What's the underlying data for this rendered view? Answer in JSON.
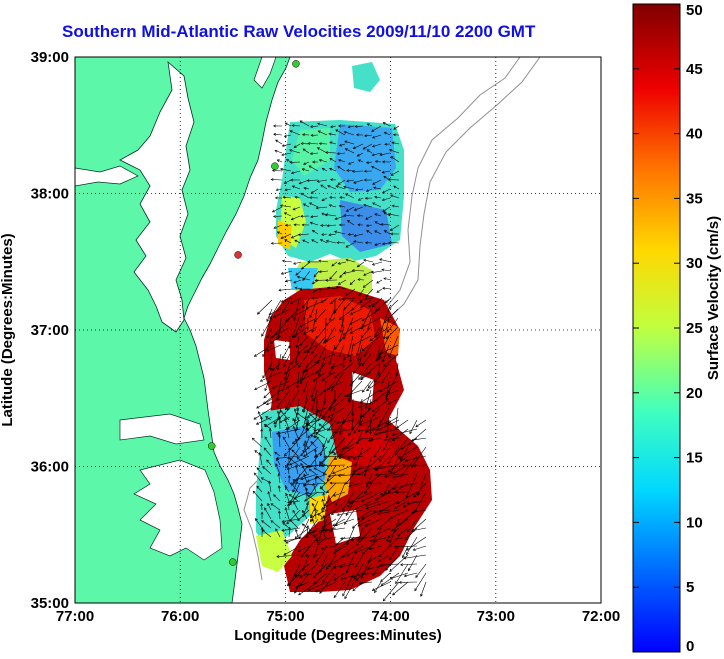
{
  "title": "Southern Mid-Atlantic Raw Velocities 2009/11/10 2200 GMT",
  "map": {
    "x_axis_label": "Longitude (Degrees:Minutes)",
    "y_axis_label": "Latitude (Degrees:Minutes)",
    "lon_range": [
      -77,
      -72
    ],
    "lat_range": [
      35,
      39
    ],
    "x_ticks": [
      {
        "value": -77,
        "label": "77:00"
      },
      {
        "value": -76,
        "label": "76:00"
      },
      {
        "value": -75,
        "label": "75:00"
      },
      {
        "value": -74,
        "label": "74:00"
      },
      {
        "value": -73,
        "label": "73:00"
      },
      {
        "value": -72,
        "label": "72:00"
      }
    ],
    "y_ticks": [
      {
        "value": 35,
        "label": "35:00"
      },
      {
        "value": 36,
        "label": "36:00"
      },
      {
        "value": 37,
        "label": "37:00"
      },
      {
        "value": 38,
        "label": "38:00"
      },
      {
        "value": 39,
        "label": "39:00"
      }
    ],
    "grid": "dotted",
    "land_color": "#5cf7a8",
    "ocean_color": "#ffffff",
    "stations": [
      {
        "lon": -74.9,
        "lat": 38.95,
        "color": "#33cc33"
      },
      {
        "lon": -75.1,
        "lat": 38.2,
        "color": "#33cc33"
      },
      {
        "lon": -75.45,
        "lat": 37.55,
        "color": "#dd3333"
      },
      {
        "lon": -75.7,
        "lat": 36.15,
        "color": "#33cc33"
      },
      {
        "lon": -75.5,
        "lat": 35.3,
        "color": "#33cc33"
      }
    ]
  },
  "colorbar": {
    "label": "Surface Velocity (cm/s)",
    "min": 0,
    "max": 50,
    "colormap": "jet",
    "ticks": [
      {
        "value": 0,
        "label": "0"
      },
      {
        "value": 5,
        "label": "5"
      },
      {
        "value": 10,
        "label": "10"
      },
      {
        "value": 15,
        "label": "15"
      },
      {
        "value": 20,
        "label": "20"
      },
      {
        "value": 25,
        "label": "25"
      },
      {
        "value": 30,
        "label": "30"
      },
      {
        "value": 35,
        "label": "35"
      },
      {
        "value": 40,
        "label": "40"
      },
      {
        "value": 45,
        "label": "45"
      },
      {
        "value": 50,
        "label": "50"
      }
    ]
  }
}
